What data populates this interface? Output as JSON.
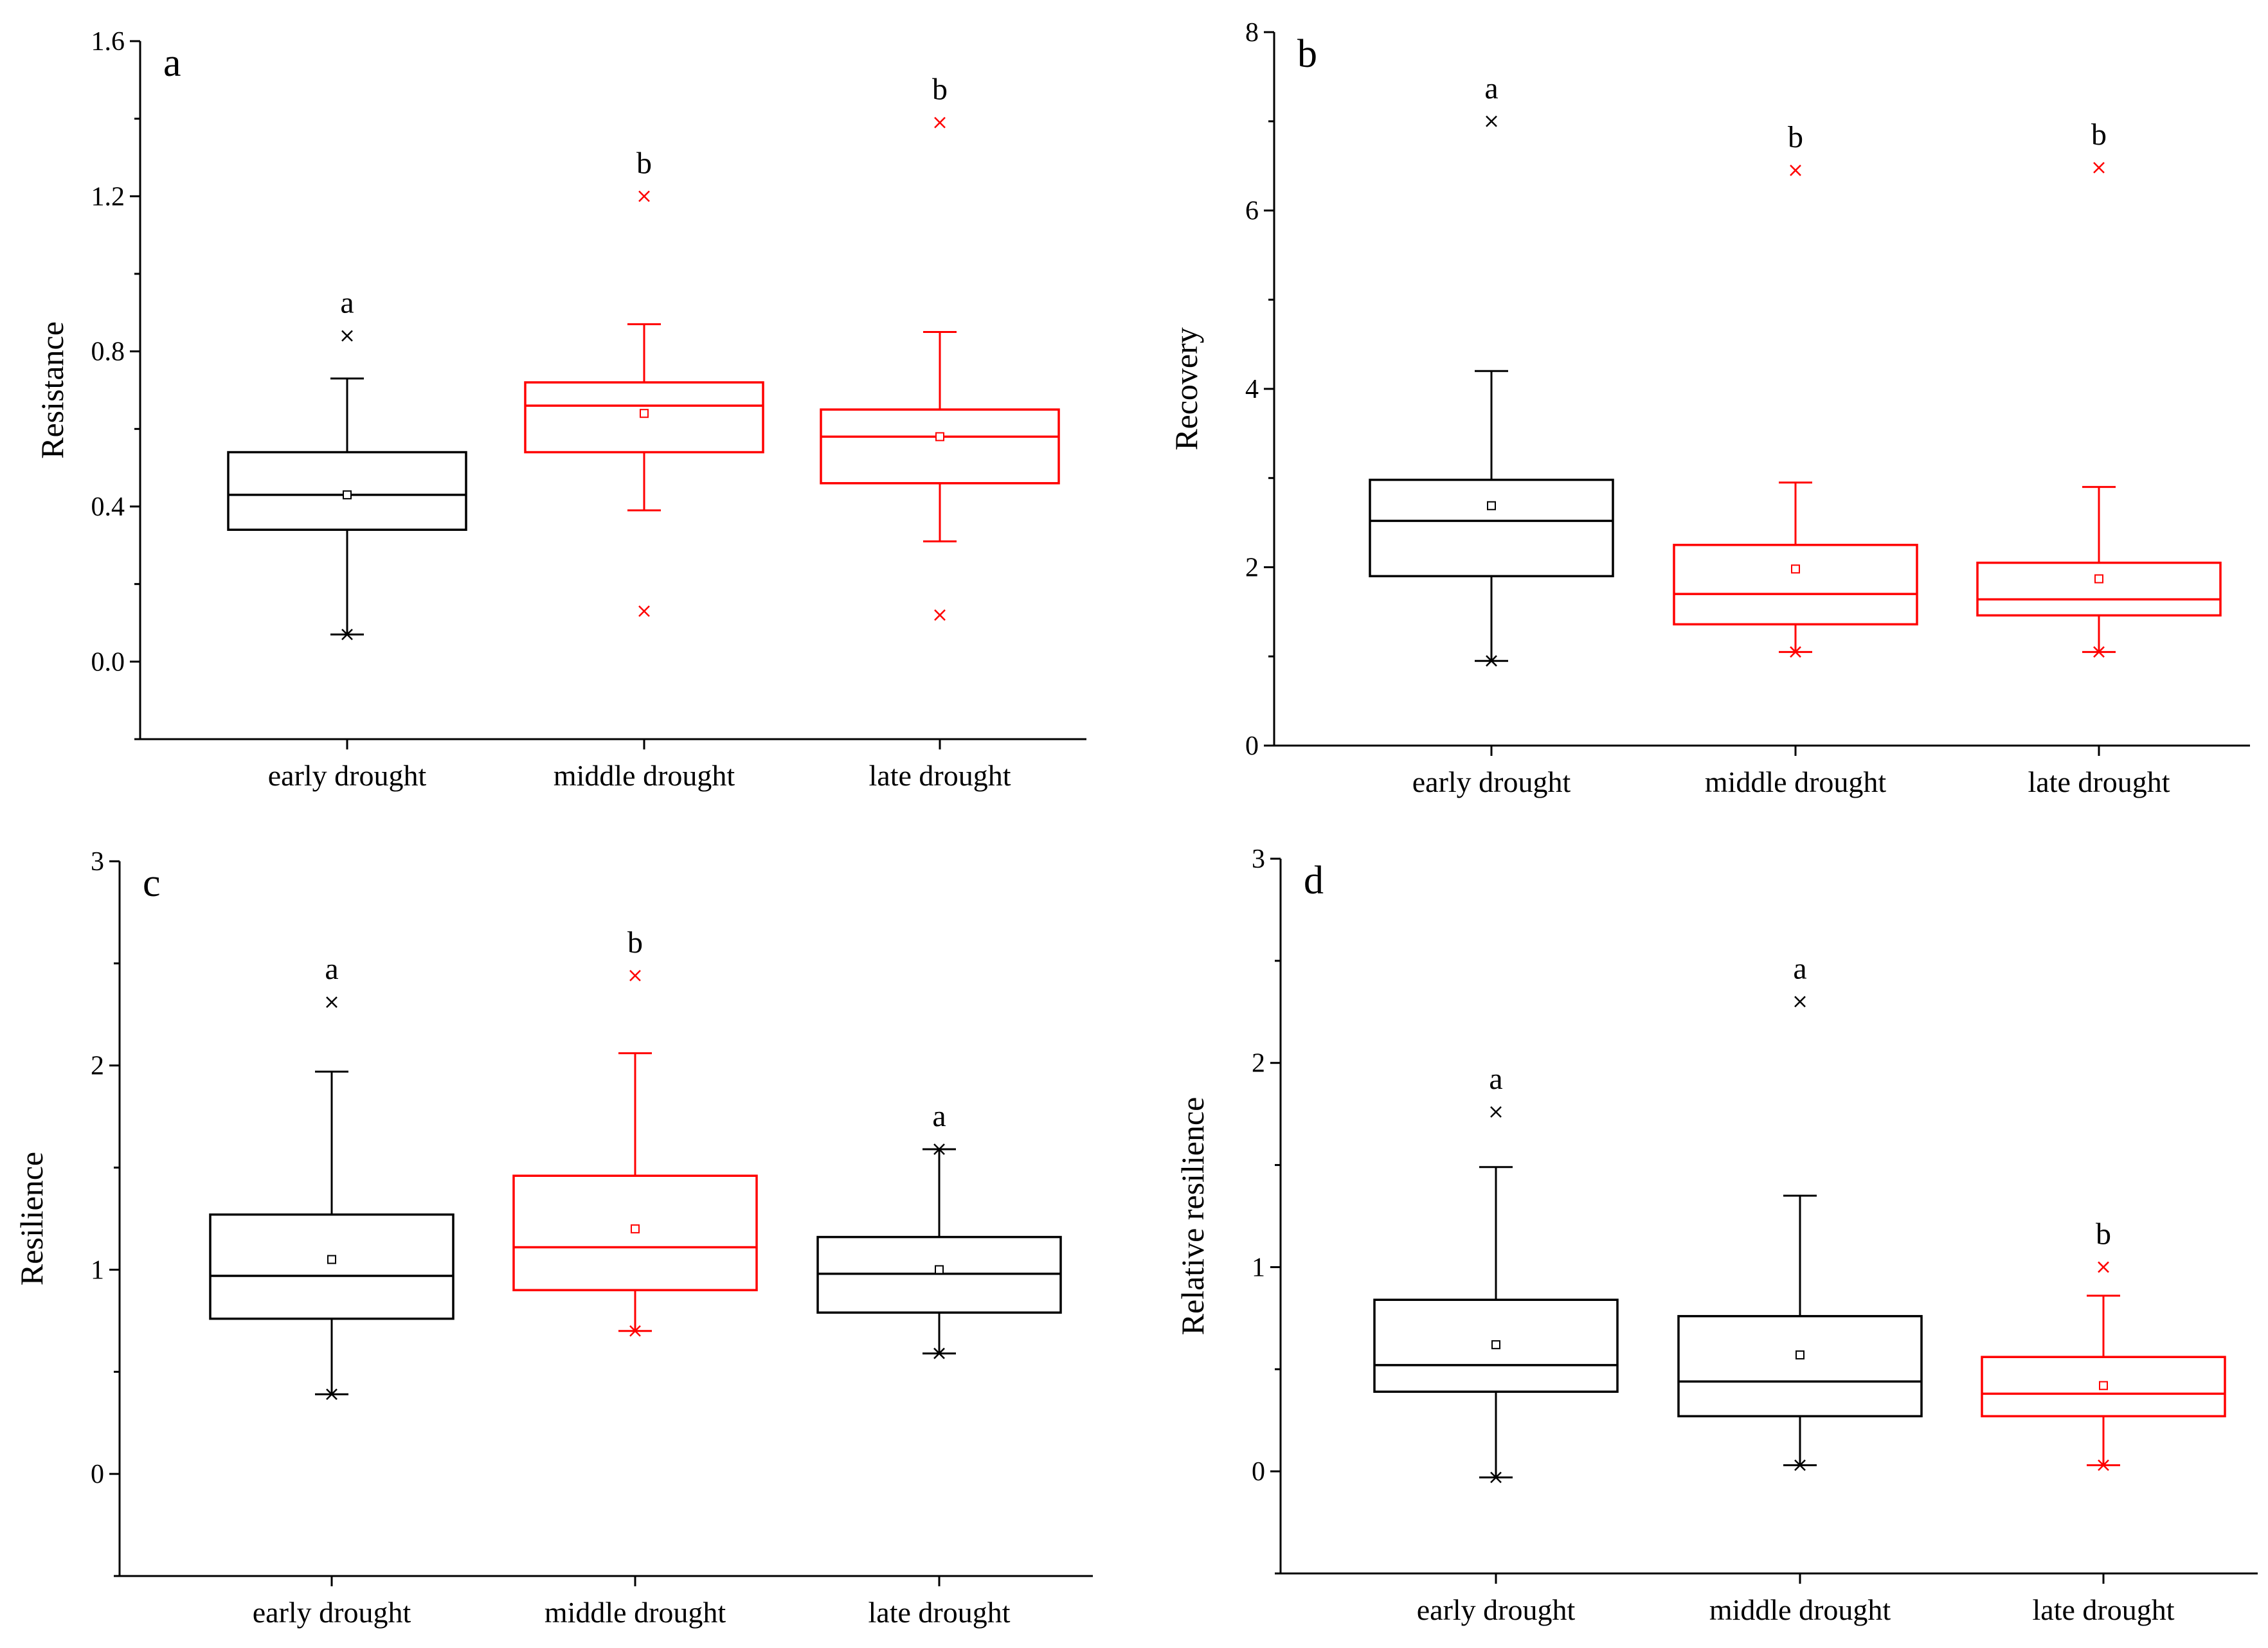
{
  "chart_data": [
    {
      "type": "box",
      "panel_label": "a",
      "ylabel": "Resistance",
      "ylim": [
        -0.2,
        1.6
      ],
      "yticks": [
        0.0,
        0.4,
        0.8,
        1.2,
        1.6
      ],
      "ytick_labels": [
        "0.0",
        "0.4",
        "0.8",
        "1.2",
        "1.6"
      ],
      "categories": [
        "early drought",
        "middle drought",
        "late drought"
      ],
      "boxes": [
        {
          "color": "#000000",
          "q1": 0.34,
          "median": 0.43,
          "q3": 0.54,
          "mean": 0.43,
          "whisker_low": 0.07,
          "whisker_high": 0.73,
          "outliers": [
            0.84
          ],
          "min_marker": 0.07,
          "letter": "a"
        },
        {
          "color": "#ff0000",
          "q1": 0.54,
          "median": 0.66,
          "q3": 0.72,
          "mean": 0.64,
          "whisker_low": 0.39,
          "whisker_high": 0.87,
          "outliers": [
            1.2,
            0.13
          ],
          "min_marker": null,
          "letter": "b"
        },
        {
          "color": "#ff0000",
          "q1": 0.46,
          "median": 0.58,
          "q3": 0.65,
          "mean": 0.58,
          "whisker_low": 0.31,
          "whisker_high": 0.85,
          "outliers": [
            1.39,
            0.12
          ],
          "min_marker": null,
          "letter": "b"
        }
      ]
    },
    {
      "type": "box",
      "panel_label": "b",
      "ylabel": "Recovery",
      "ylim": [
        0,
        8
      ],
      "yticks": [
        0,
        2,
        4,
        6,
        8
      ],
      "ytick_labels": [
        "0",
        "2",
        "4",
        "6",
        "8"
      ],
      "categories": [
        "early drought",
        "middle drought",
        "late drought"
      ],
      "boxes": [
        {
          "color": "#000000",
          "q1": 1.9,
          "median": 2.52,
          "q3": 2.98,
          "mean": 2.69,
          "whisker_low": 0.95,
          "whisker_high": 4.2,
          "outliers": [
            7.0
          ],
          "min_marker": 0.95,
          "letter": "a"
        },
        {
          "color": "#ff0000",
          "q1": 1.36,
          "median": 1.7,
          "q3": 2.25,
          "mean": 1.98,
          "whisker_low": 1.05,
          "whisker_high": 2.95,
          "outliers": [
            6.45
          ],
          "min_marker": 1.05,
          "letter": "b"
        },
        {
          "color": "#ff0000",
          "q1": 1.46,
          "median": 1.64,
          "q3": 2.05,
          "mean": 1.87,
          "whisker_low": 1.05,
          "whisker_high": 2.9,
          "outliers": [
            6.48
          ],
          "min_marker": 1.05,
          "letter": "b"
        }
      ]
    },
    {
      "type": "box",
      "panel_label": "c",
      "ylabel": "Resilience",
      "ylim": [
        -0.5,
        3
      ],
      "yticks": [
        0,
        1,
        2,
        3
      ],
      "ytick_labels": [
        "0",
        "1",
        "2",
        "3"
      ],
      "categories": [
        "early drought",
        "middle drought",
        "late drought"
      ],
      "boxes": [
        {
          "color": "#000000",
          "q1": 0.76,
          "median": 0.97,
          "q3": 1.27,
          "mean": 1.05,
          "whisker_low": 0.39,
          "whisker_high": 1.97,
          "outliers": [
            2.31
          ],
          "min_marker": 0.39,
          "letter": "a"
        },
        {
          "color": "#ff0000",
          "q1": 0.9,
          "median": 1.11,
          "q3": 1.46,
          "mean": 1.2,
          "whisker_low": 0.7,
          "whisker_high": 2.06,
          "outliers": [
            2.44
          ],
          "min_marker": 0.7,
          "letter": "b"
        },
        {
          "color": "#000000",
          "q1": 0.79,
          "median": 0.98,
          "q3": 1.16,
          "mean": 1.0,
          "whisker_low": 0.59,
          "whisker_high": 1.59,
          "outliers": [],
          "min_marker": 0.59,
          "max_marker": 1.59,
          "letter": "a"
        }
      ]
    },
    {
      "type": "box",
      "panel_label": "d",
      "ylabel": "Relative resilience",
      "ylim": [
        -0.5,
        3
      ],
      "yticks": [
        0,
        1,
        2,
        3
      ],
      "ytick_labels": [
        "0",
        "1",
        "2",
        "3"
      ],
      "categories": [
        "early drought",
        "middle drought",
        "late drought"
      ],
      "boxes": [
        {
          "color": "#000000",
          "q1": 0.39,
          "median": 0.52,
          "q3": 0.84,
          "mean": 0.62,
          "whisker_low": -0.03,
          "whisker_high": 1.49,
          "outliers": [
            1.76
          ],
          "min_marker": -0.03,
          "letter": "a"
        },
        {
          "color": "#000000",
          "q1": 0.27,
          "median": 0.44,
          "q3": 0.76,
          "mean": 0.57,
          "whisker_low": 0.03,
          "whisker_high": 1.35,
          "outliers": [
            2.3
          ],
          "min_marker": 0.03,
          "letter": "a"
        },
        {
          "color": "#ff0000",
          "q1": 0.27,
          "median": 0.38,
          "q3": 0.56,
          "mean": 0.42,
          "whisker_low": 0.03,
          "whisker_high": 0.86,
          "outliers": [
            1.0
          ],
          "min_marker": 0.03,
          "letter": "b"
        }
      ]
    }
  ]
}
